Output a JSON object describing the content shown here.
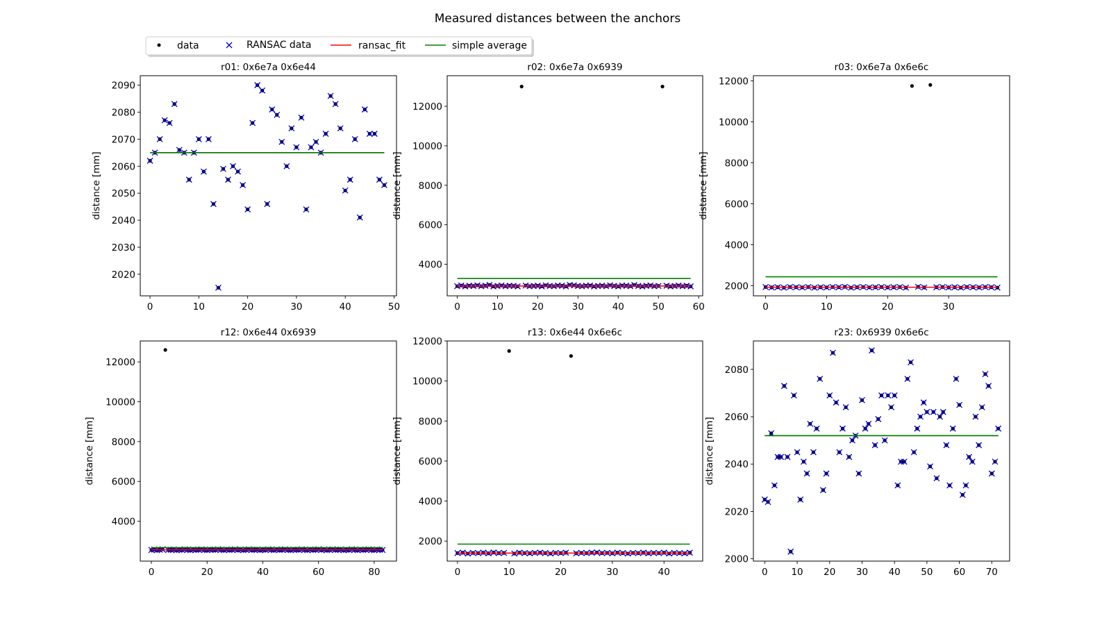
{
  "chart_data": {
    "type": "scatter",
    "title": "Measured distances between the anchors",
    "legend": {
      "placement": "top-left",
      "entries": [
        {
          "name": "data",
          "marker": "dot",
          "color": "#000000"
        },
        {
          "name": "RANSAC data",
          "marker": "x",
          "color": "#0000cc"
        },
        {
          "name": "ransac_fit",
          "marker": "line",
          "color": "#ff0000"
        },
        {
          "name": "simple average",
          "marker": "line",
          "color": "#008000"
        }
      ]
    },
    "subplots": [
      {
        "title": "r01: 0x6e7a 0x6e44",
        "ylabel": "distance [mm]",
        "xlim": [
          -2,
          50.5
        ],
        "ylim": [
          2012,
          2093.5
        ],
        "xticks": [
          0,
          10,
          20,
          30,
          40,
          50
        ],
        "yticks": [
          2020,
          2030,
          2040,
          2050,
          2060,
          2070,
          2080,
          2090
        ],
        "simple_average": 2065,
        "ransac_fit": 2065,
        "fit_range": [
          0,
          48
        ],
        "values": [
          2062,
          2065,
          2070,
          2077,
          2076,
          2083,
          2066,
          2065,
          2055,
          2065,
          2070,
          2058,
          2070,
          2046,
          2015,
          2059,
          2055,
          2060,
          2058,
          2053,
          2044,
          2076,
          2090,
          2088,
          2046,
          2081,
          2079,
          2069,
          2060,
          2074,
          2067,
          2078,
          2044,
          2067,
          2069,
          2065,
          2072,
          2086,
          2083,
          2074,
          2051,
          2055,
          2070,
          2041,
          2081,
          2072,
          2072,
          2055,
          2053
        ],
        "outliers": []
      },
      {
        "title": "r02: 0x6e7a 0x6939",
        "ylabel": "distance [mm]",
        "xlim": [
          -2.5,
          61
        ],
        "ylim": [
          2400,
          13550
        ],
        "xticks": [
          0,
          10,
          20,
          30,
          40,
          50,
          60
        ],
        "yticks": [
          4000,
          6000,
          8000,
          10000,
          12000
        ],
        "simple_average": 3280,
        "ransac_fit": 2900,
        "fit_range": [
          0,
          58
        ],
        "values": [
          2890,
          2920,
          2880,
          2910,
          2900,
          2930,
          2890,
          2910,
          2950,
          2880,
          2900,
          2920,
          2890,
          2910,
          2900,
          2880,
          null,
          2920,
          2890,
          2900,
          2910,
          2880,
          2930,
          2900,
          2890,
          2920,
          2910,
          2880,
          2950,
          2930,
          2900,
          2890,
          2910,
          2920,
          2880,
          2900,
          2910,
          2890,
          2930,
          2900,
          2880,
          2920,
          2910,
          2890,
          2950,
          2900,
          2880,
          2910,
          2920,
          2890,
          2900,
          null,
          2910,
          2880,
          2900,
          2920,
          2890,
          2910,
          2880
        ],
        "outliers": [
          {
            "x": 16,
            "y": 13000
          },
          {
            "x": 51,
            "y": 13000
          }
        ]
      },
      {
        "title": "r03: 0x6e7a 0x6e6c",
        "ylabel": "distance [mm]",
        "xlim": [
          -2,
          40
        ],
        "ylim": [
          1500,
          12250
        ],
        "xticks": [
          0,
          10,
          20,
          30
        ],
        "yticks": [
          2000,
          4000,
          6000,
          8000,
          10000,
          12000
        ],
        "simple_average": 2430,
        "ransac_fit": 1920,
        "fit_range": [
          0,
          38
        ],
        "values": [
          1930,
          1910,
          1920,
          1900,
          1930,
          1920,
          1910,
          1930,
          1900,
          1920,
          1910,
          1930,
          1920,
          1940,
          1900,
          1920,
          1930,
          1910,
          1920,
          1930,
          1910,
          1920,
          1930,
          1900,
          null,
          1940,
          1910,
          null,
          1920,
          1930,
          1910,
          1920,
          1900,
          1930,
          1920,
          1910,
          1930,
          1920,
          1900
        ],
        "outliers": [
          {
            "x": 24,
            "y": 11750
          },
          {
            "x": 27,
            "y": 11800
          }
        ]
      },
      {
        "title": "r12: 0x6e44 0x6939",
        "ylabel": "distance [mm]",
        "xlim": [
          -4,
          88
        ],
        "ylim": [
          2000,
          13050
        ],
        "xticks": [
          0,
          20,
          40,
          60,
          80
        ],
        "yticks": [
          4000,
          6000,
          8000,
          10000,
          12000
        ],
        "simple_average": 2680,
        "ransac_fit": 2570,
        "fit_range": [
          0,
          83
        ],
        "values": [
          2560,
          2580,
          2550,
          2570,
          2590,
          null,
          2560,
          2570,
          2580,
          2550,
          2570,
          2560,
          2590,
          2570,
          2550,
          2580,
          2560,
          2570,
          2590,
          2560,
          2550,
          2580,
          2570,
          2560,
          2590,
          2570,
          2550,
          2580,
          2560,
          2570,
          2590,
          2560,
          2580,
          2550,
          2570,
          2590,
          2560,
          2570,
          2580,
          2550,
          2570,
          2560,
          2590,
          2570,
          2550,
          2580,
          2560,
          2570,
          2590,
          2560,
          2550,
          2580,
          2570,
          2560,
          2590,
          2570,
          2550,
          2580,
          2560,
          2570,
          2590,
          2560,
          2580,
          2550,
          2570,
          2590,
          2560,
          2570,
          2580,
          2550,
          2570,
          2560,
          2590,
          2570,
          2550,
          2580,
          2560,
          2570,
          2590,
          2560,
          2550,
          2580,
          2570,
          2560
        ],
        "outliers": [
          {
            "x": 5,
            "y": 12600
          }
        ]
      },
      {
        "title": "r13: 0x6e44 0x6e6c",
        "ylabel": "distance [mm]",
        "xlim": [
          -2,
          47.5
        ],
        "ylim": [
          1000,
          12000
        ],
        "xticks": [
          0,
          10,
          20,
          30,
          40
        ],
        "yticks": [
          2000,
          4000,
          6000,
          8000,
          10000,
          12000
        ],
        "simple_average": 1850,
        "ransac_fit": 1400,
        "fit_range": [
          0,
          45
        ],
        "values": [
          1400,
          1420,
          1380,
          1410,
          1400,
          1420,
          1390,
          1430,
          1400,
          1410,
          null,
          1380,
          1420,
          1400,
          1390,
          1410,
          1420,
          1400,
          1380,
          1410,
          1400,
          1420,
          null,
          1390,
          1410,
          1400,
          1420,
          1430,
          1400,
          1410,
          1390,
          1420,
          1400,
          1380,
          1410,
          1400,
          1420,
          1390,
          1410,
          1400,
          1420,
          1380,
          1410,
          1400,
          1390,
          1420
        ],
        "outliers": [
          {
            "x": 10,
            "y": 11500
          },
          {
            "x": 22,
            "y": 11250
          }
        ]
      },
      {
        "title": "r23: 0x6939 0x6e6c",
        "ylabel": "distance [mm]",
        "xlim": [
          -3.5,
          75.5
        ],
        "ylim": [
          1999,
          2092
        ],
        "xticks": [
          0,
          10,
          20,
          30,
          40,
          50,
          60,
          70
        ],
        "yticks": [
          2000,
          2020,
          2040,
          2060,
          2080
        ],
        "simple_average": 2052,
        "ransac_fit": 2052,
        "fit_range": [
          0,
          72
        ],
        "values": [
          2025,
          2024,
          2053,
          2031,
          2043,
          2043,
          2073,
          2043,
          2003,
          2069,
          2045,
          2025,
          2041,
          2036,
          2057,
          2045,
          2055,
          2076,
          2029,
          2036,
          2069,
          2087,
          2066,
          2045,
          2055,
          2064,
          2043,
          2050,
          2052,
          2036,
          2067,
          2055,
          2057,
          2088,
          2048,
          2059,
          2069,
          2050,
          2069,
          2064,
          2069,
          2031,
          2041,
          2041,
          2076,
          2083,
          2045,
          2055,
          2060,
          2066,
          2062,
          2039,
          2062,
          2034,
          2060,
          2062,
          2048,
          2031,
          2055,
          2076,
          2065,
          2027,
          2031,
          2043,
          2041,
          2060,
          2048,
          2064,
          2078,
          2073,
          2036,
          2041,
          2055
        ],
        "outliers": []
      }
    ]
  }
}
